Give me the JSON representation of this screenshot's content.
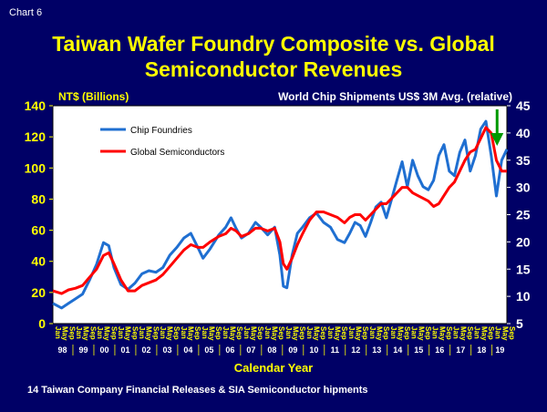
{
  "header": {
    "chart_label": "Chart 6"
  },
  "chart_data": {
    "type": "line",
    "title_line1": "Taiwan Wafer Foundry Composite vs. Global",
    "title_line2": "Semiconductor Revenues",
    "ylabel_left": "NT$ (Billions)",
    "ylabel_right": "World Chip Shipments US$ 3M Avg. (relative)",
    "xlabel": "Calendar Year",
    "source": "14 Taiwan Company Financial Releases & SIA Semiconductor hipments",
    "ylim_left": [
      0,
      140
    ],
    "yticks_left": [
      0,
      20,
      40,
      60,
      80,
      100,
      120,
      140
    ],
    "ylim_right": [
      5,
      45
    ],
    "yticks_right": [
      5,
      10,
      15,
      20,
      25,
      30,
      35,
      40,
      45
    ],
    "years": [
      "98",
      "99",
      "00",
      "01",
      "02",
      "03",
      "04",
      "05",
      "06",
      "07",
      "08",
      "09",
      "10",
      "11",
      "12",
      "13",
      "14",
      "15",
      "16",
      "17",
      "18",
      "19"
    ],
    "month_ticks": [
      "Jan",
      "May",
      "Sep"
    ],
    "x_start": "1998-01",
    "x_end": "2019-09",
    "legend": {
      "position": "top-left-inside"
    },
    "series": [
      {
        "name": "Chip Foundries",
        "axis": "left",
        "color": "#1f6fd1",
        "points": [
          [
            "1998-01",
            13
          ],
          [
            "1998-06",
            10
          ],
          [
            "1998-10",
            13
          ],
          [
            "1999-02",
            16
          ],
          [
            "1999-06",
            19
          ],
          [
            "1999-10",
            28
          ],
          [
            "2000-02",
            38
          ],
          [
            "2000-06",
            52
          ],
          [
            "2000-09",
            50
          ],
          [
            "2000-12",
            36
          ],
          [
            "2001-04",
            25
          ],
          [
            "2001-08",
            22
          ],
          [
            "2001-12",
            26
          ],
          [
            "2002-04",
            32
          ],
          [
            "2002-08",
            34
          ],
          [
            "2002-12",
            33
          ],
          [
            "2003-04",
            36
          ],
          [
            "2003-08",
            44
          ],
          [
            "2003-12",
            49
          ],
          [
            "2004-04",
            55
          ],
          [
            "2004-08",
            58
          ],
          [
            "2004-12",
            49
          ],
          [
            "2005-03",
            42
          ],
          [
            "2005-07",
            48
          ],
          [
            "2005-12",
            57
          ],
          [
            "2006-04",
            62
          ],
          [
            "2006-07",
            68
          ],
          [
            "2006-10",
            61
          ],
          [
            "2007-01",
            55
          ],
          [
            "2007-05",
            58
          ],
          [
            "2007-09",
            65
          ],
          [
            "2007-12",
            62
          ],
          [
            "2008-04",
            57
          ],
          [
            "2008-08",
            62
          ],
          [
            "2008-11",
            44
          ],
          [
            "2009-01",
            24
          ],
          [
            "2009-03",
            23
          ],
          [
            "2009-06",
            44
          ],
          [
            "2009-09",
            58
          ],
          [
            "2009-12",
            62
          ],
          [
            "2010-04",
            68
          ],
          [
            "2010-08",
            71
          ],
          [
            "2010-12",
            65
          ],
          [
            "2011-04",
            62
          ],
          [
            "2011-08",
            54
          ],
          [
            "2011-12",
            52
          ],
          [
            "2012-03",
            58
          ],
          [
            "2012-06",
            65
          ],
          [
            "2012-09",
            63
          ],
          [
            "2012-12",
            56
          ],
          [
            "2013-03",
            65
          ],
          [
            "2013-06",
            75
          ],
          [
            "2013-09",
            78
          ],
          [
            "2013-12",
            68
          ],
          [
            "2014-03",
            80
          ],
          [
            "2014-06",
            92
          ],
          [
            "2014-09",
            104
          ],
          [
            "2014-12",
            88
          ],
          [
            "2015-03",
            105
          ],
          [
            "2015-06",
            95
          ],
          [
            "2015-09",
            88
          ],
          [
            "2015-12",
            86
          ],
          [
            "2016-03",
            92
          ],
          [
            "2016-06",
            108
          ],
          [
            "2016-09",
            115
          ],
          [
            "2016-12",
            98
          ],
          [
            "2017-03",
            95
          ],
          [
            "2017-06",
            110
          ],
          [
            "2017-09",
            118
          ],
          [
            "2017-12",
            98
          ],
          [
            "2018-03",
            108
          ],
          [
            "2018-06",
            125
          ],
          [
            "2018-09",
            130
          ],
          [
            "2018-12",
            108
          ],
          [
            "2019-03",
            82
          ],
          [
            "2019-06",
            105
          ],
          [
            "2019-09",
            112
          ]
        ]
      },
      {
        "name": "Global Semiconductors",
        "axis": "right",
        "color": "#ff0000",
        "points": [
          [
            "1998-01",
            11
          ],
          [
            "1998-06",
            10.5
          ],
          [
            "1998-10",
            11.2
          ],
          [
            "1999-02",
            11.5
          ],
          [
            "1999-06",
            12
          ],
          [
            "1999-10",
            13.5
          ],
          [
            "2000-02",
            15
          ],
          [
            "2000-06",
            17.5
          ],
          [
            "2000-09",
            18
          ],
          [
            "2000-12",
            16
          ],
          [
            "2001-04",
            13
          ],
          [
            "2001-08",
            11
          ],
          [
            "2001-12",
            11
          ],
          [
            "2002-04",
            12
          ],
          [
            "2002-08",
            12.5
          ],
          [
            "2002-12",
            13
          ],
          [
            "2003-04",
            14
          ],
          [
            "2003-08",
            15.5
          ],
          [
            "2003-12",
            17
          ],
          [
            "2004-04",
            18.5
          ],
          [
            "2004-08",
            19.5
          ],
          [
            "2004-12",
            19
          ],
          [
            "2005-03",
            19
          ],
          [
            "2005-07",
            20
          ],
          [
            "2005-12",
            21
          ],
          [
            "2006-04",
            21.5
          ],
          [
            "2006-07",
            22.5
          ],
          [
            "2006-10",
            22
          ],
          [
            "2007-01",
            21
          ],
          [
            "2007-05",
            21.5
          ],
          [
            "2007-09",
            22.5
          ],
          [
            "2007-12",
            22.5
          ],
          [
            "2008-04",
            22
          ],
          [
            "2008-08",
            22.5
          ],
          [
            "2008-11",
            20
          ],
          [
            "2009-01",
            16
          ],
          [
            "2009-03",
            15
          ],
          [
            "2009-06",
            17
          ],
          [
            "2009-09",
            19.5
          ],
          [
            "2009-12",
            21.5
          ],
          [
            "2010-04",
            24
          ],
          [
            "2010-08",
            25.5
          ],
          [
            "2010-12",
            25.5
          ],
          [
            "2011-04",
            25
          ],
          [
            "2011-08",
            24.5
          ],
          [
            "2011-12",
            23.5
          ],
          [
            "2012-03",
            24.5
          ],
          [
            "2012-06",
            25
          ],
          [
            "2012-09",
            25
          ],
          [
            "2012-12",
            24
          ],
          [
            "2013-03",
            25
          ],
          [
            "2013-06",
            26
          ],
          [
            "2013-09",
            27
          ],
          [
            "2013-12",
            27
          ],
          [
            "2014-03",
            28
          ],
          [
            "2014-06",
            29
          ],
          [
            "2014-09",
            30
          ],
          [
            "2014-12",
            30
          ],
          [
            "2015-03",
            29
          ],
          [
            "2015-06",
            28.5
          ],
          [
            "2015-09",
            28
          ],
          [
            "2015-12",
            27.5
          ],
          [
            "2016-03",
            26.5
          ],
          [
            "2016-06",
            27
          ],
          [
            "2016-09",
            28.5
          ],
          [
            "2016-12",
            30
          ],
          [
            "2017-03",
            31
          ],
          [
            "2017-06",
            33
          ],
          [
            "2017-09",
            35
          ],
          [
            "2017-12",
            36.5
          ],
          [
            "2018-03",
            37
          ],
          [
            "2018-06",
            39
          ],
          [
            "2018-09",
            41
          ],
          [
            "2018-12",
            40
          ],
          [
            "2019-03",
            35
          ],
          [
            "2019-06",
            33
          ],
          [
            "2019-09",
            33
          ]
        ]
      }
    ],
    "annotation": {
      "type": "down-arrow",
      "color": "#009900",
      "at": "2019-06"
    }
  }
}
